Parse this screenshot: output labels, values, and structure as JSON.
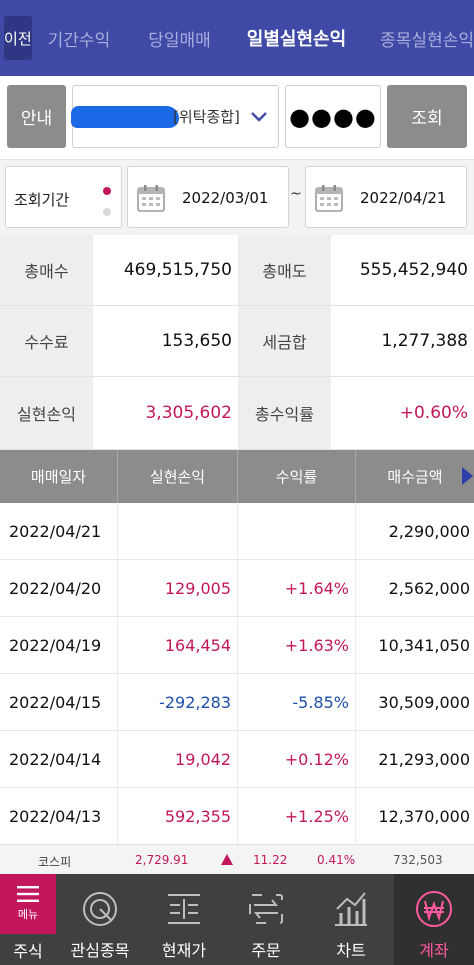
{
  "header": {
    "prev_label": "이전",
    "tabs": [
      "기간수익",
      "당일매매",
      "일별실현손익",
      "종목실현손익"
    ],
    "active_tab": "일별실현손익"
  },
  "account": {
    "guide_label": "안내",
    "account_suffix": "[위탁종합]",
    "password_mask": "●●●●",
    "query_label": "조회"
  },
  "period": {
    "label": "조회기간",
    "from": "2022/03/01",
    "separator": "~",
    "to": "2022/04/21"
  },
  "summary": {
    "total_buy_label": "총매수",
    "total_buy": "469,515,750",
    "total_sell_label": "총매도",
    "total_sell": "555,452,940",
    "fee_label": "수수료",
    "fee": "153,650",
    "tax_label": "세금합",
    "tax": "1,277,388",
    "realized_label": "실현손익",
    "realized": "3,305,602",
    "total_return_label": "총수익률",
    "total_return": "+0.60%"
  },
  "table": {
    "headers": [
      "매매일자",
      "실현손익",
      "수익률",
      "매수금액"
    ],
    "rows": [
      {
        "date": "2022/04/21",
        "pl": "",
        "rate": "",
        "amount": "2,290,000",
        "sign": ""
      },
      {
        "date": "2022/04/20",
        "pl": "129,005",
        "rate": "+1.64%",
        "amount": "2,562,000",
        "sign": "pos"
      },
      {
        "date": "2022/04/19",
        "pl": "164,454",
        "rate": "+1.63%",
        "amount": "10,341,050",
        "sign": "pos"
      },
      {
        "date": "2022/04/15",
        "pl": "-292,283",
        "rate": "-5.85%",
        "amount": "30,509,000",
        "sign": "neg"
      },
      {
        "date": "2022/04/14",
        "pl": "19,042",
        "rate": "+0.12%",
        "amount": "21,293,000",
        "sign": "pos"
      },
      {
        "date": "2022/04/13",
        "pl": "592,355",
        "rate": "+1.25%",
        "amount": "12,370,000",
        "sign": "pos"
      }
    ]
  },
  "ticker": {
    "name": "코스피",
    "index": "2,729.91",
    "change": "11.22",
    "percent": "0.41%",
    "volume": "732,503"
  },
  "nav": {
    "menu_label": "메뉴",
    "menu_sub": "주식",
    "items": [
      "관심종목",
      "현재가",
      "주문",
      "차트",
      "계좌"
    ],
    "active": "계좌"
  },
  "colors": {
    "header_bg": "#3f4aa6",
    "accent_pink": "#c2185b",
    "negative_blue": "#1f4fa8",
    "button_gray": "#8c8c8c",
    "nav_bg": "#404040"
  }
}
